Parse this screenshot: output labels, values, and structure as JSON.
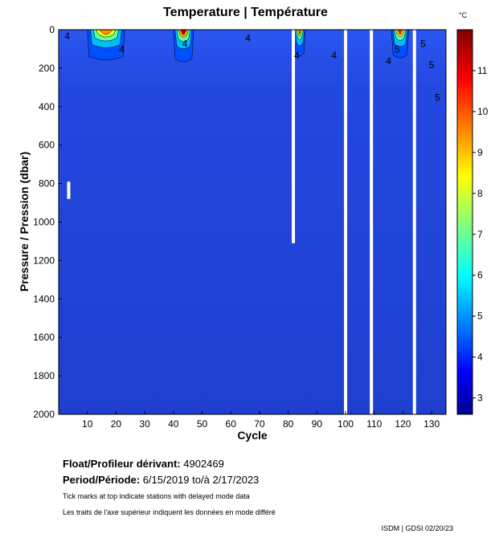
{
  "title": "Temperature | Température",
  "colorbar_unit": "°C",
  "info": {
    "float_label": "Float/Profileur dérivant:",
    "float_value": "4902469",
    "period_label": "Period/Période:",
    "period_value": "6/15/2019  to/à  2/17/2023",
    "note_en": "Tick marks at top indicate stations with delayed mode data",
    "note_fr": "Les traits de l'axe supérieur indiquent les données en mode différé"
  },
  "credit": "ISDM | GDSI  02/20/23",
  "chart_data": {
    "type": "heatmap",
    "title": "Temperature | Température",
    "xlabel": "Cycle",
    "ylabel": "Pressure / Pression (dbar)",
    "xlim": [
      0,
      135
    ],
    "ylim": [
      2000,
      0
    ],
    "y_inverted": true,
    "x_ticks": [
      "10",
      "20",
      "30",
      "40",
      "50",
      "60",
      "70",
      "80",
      "90",
      "100",
      "110",
      "120",
      "130"
    ],
    "y_ticks": [
      "0",
      "200",
      "400",
      "600",
      "800",
      "1000",
      "1200",
      "1400",
      "1600",
      "1800",
      "2000"
    ],
    "colorbar": {
      "unit": "°C",
      "range": [
        2.6,
        12.0
      ],
      "ticks": [
        "3",
        "4",
        "5",
        "6",
        "7",
        "8",
        "9",
        "10",
        "11"
      ],
      "colormap": "jet"
    },
    "background_temperature": 3.8,
    "warm_surface_events": [
      {
        "cycle_start": 10,
        "cycle_end": 23,
        "max_temp": 9.5,
        "depth": 140
      },
      {
        "cycle_start": 40,
        "cycle_end": 47,
        "max_temp": 11.5,
        "depth": 150
      },
      {
        "cycle_start": 82,
        "cycle_end": 86,
        "max_temp": 10.0,
        "depth": 120
      },
      {
        "cycle_start": 116,
        "cycle_end": 122,
        "max_temp": 10.5,
        "depth": 130
      }
    ],
    "contour_labels": [
      "4",
      "4",
      "4",
      "4",
      "4",
      "4",
      "4",
      "5",
      "5",
      "5",
      "5"
    ],
    "data_gaps": [
      {
        "cycle": 3.5,
        "pressure_min": 790,
        "pressure_max": 880
      },
      {
        "cycle": 81.8,
        "pressure_min": 0,
        "pressure_max": 1110
      },
      {
        "cycle": 100,
        "pressure_min": 0,
        "pressure_max": 2000
      },
      {
        "cycle": 109,
        "pressure_min": 0,
        "pressure_max": 2000
      },
      {
        "cycle": 124,
        "pressure_min": 0,
        "pressure_max": 2000
      }
    ],
    "grid": false,
    "colors": {
      "deep": "#1f3fd6",
      "surface_warm": "#ff5a00",
      "frame": "#000000"
    }
  }
}
